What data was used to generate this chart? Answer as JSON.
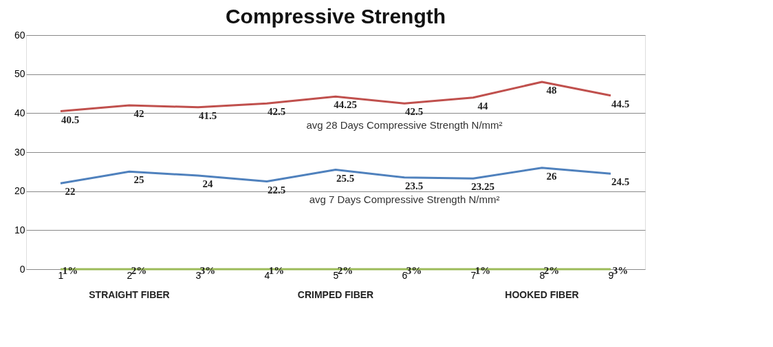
{
  "chart_data": {
    "type": "line",
    "title": "Compressive Strength",
    "categories": [
      "1",
      "2",
      "3",
      "4",
      "5",
      "6",
      "7",
      "8",
      "9"
    ],
    "series": [
      {
        "name": "avg 28 Days Compressive Strength N/mm²",
        "color": "#c0504d",
        "values": [
          40.5,
          42,
          41.5,
          42.5,
          44.25,
          42.5,
          44,
          48,
          44.5
        ],
        "value_labels": [
          "40.5",
          "42",
          "41.5",
          "42.5",
          "44.25",
          "42.5",
          "44",
          "48",
          "44.5"
        ]
      },
      {
        "name": "avg 7 Days Compressive Strength N/mm²",
        "color": "#4f81bd",
        "values": [
          22,
          25,
          24,
          22.5,
          25.5,
          23.5,
          23.25,
          26,
          24.5
        ],
        "value_labels": [
          "22",
          "25",
          "24",
          "22.5",
          "25.5",
          "23.5",
          "23.25",
          "26",
          "24.5"
        ]
      },
      {
        "color": "#9bbb59",
        "values": [
          0,
          0,
          0,
          0,
          0,
          0,
          0,
          0,
          0
        ]
      }
    ],
    "annotations": [
      "STRAIGHT FIBER",
      "CRIMPED  FIBER",
      "HOOKED FIBER",
      {
        "text": "1%",
        "x": "1",
        "y": 0
      },
      {
        "text": "2%",
        "x": "2",
        "y": 0
      },
      {
        "text": "3%",
        "x": "3",
        "y": 0
      },
      {
        "text": "1%",
        "x": "4",
        "y": 0
      },
      {
        "text": "2%",
        "x": "5",
        "y": 0
      },
      {
        "text": "3%",
        "x": "6",
        "y": 0
      },
      {
        "text": "1%",
        "x": "7",
        "y": 0
      },
      {
        "text": "2%",
        "x": "8",
        "y": 0
      },
      {
        "text": "3%",
        "x": "9",
        "y": 0
      }
    ],
    "ylim": [
      0,
      60
    ],
    "yticks": [
      0,
      10,
      20,
      30,
      40,
      50,
      60
    ],
    "grid": "y",
    "marker": "none",
    "line_style": "solid"
  }
}
